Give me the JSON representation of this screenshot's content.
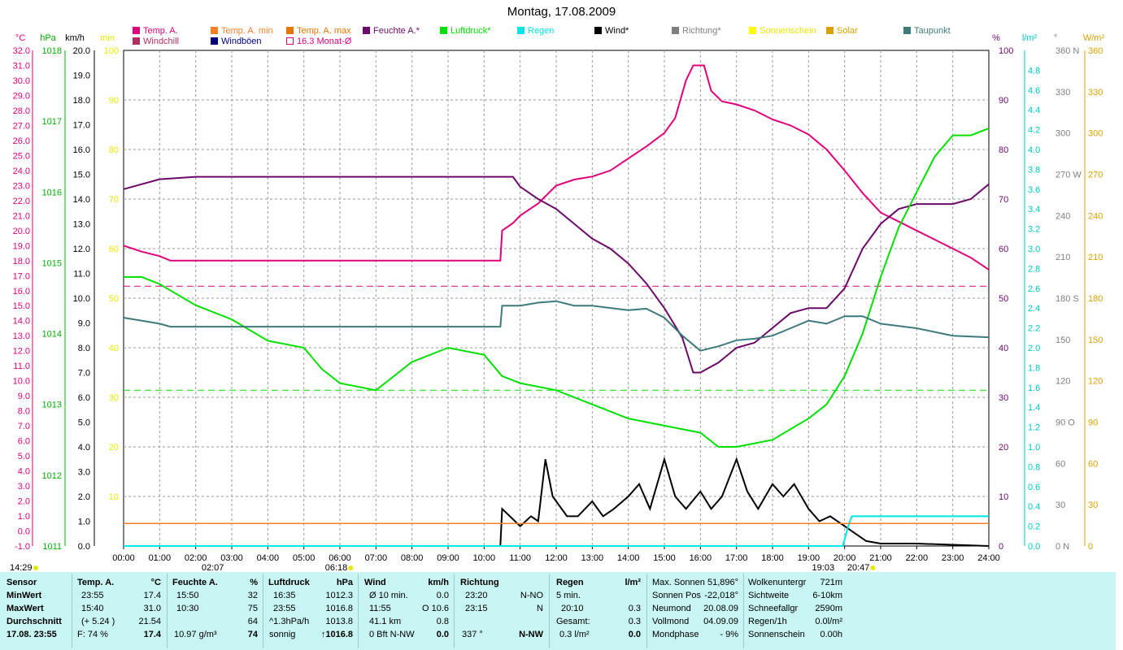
{
  "title": "Montag, 17.08.2009",
  "colors": {
    "temp": "#E0007A",
    "temp_min": "#FF7F27",
    "temp_max": "#E87400",
    "humidity": "#6B0A6B",
    "pressure": "#00E000",
    "rain": "#00E5E5",
    "wind": "#000000",
    "direction": "#7F7F7F",
    "sunshine": "#FFFF00",
    "solar": "#D8A000",
    "dewpoint": "#3F7A7A",
    "windchill": "#B03060",
    "gust": "#00007F",
    "monthavg": "#E0007A",
    "stats_bg": "#C8F4F4"
  },
  "legend": [
    {
      "label": "Temp. A.",
      "color": "#E0007A"
    },
    {
      "label": "Temp. A. min",
      "color": "#FF7F27"
    },
    {
      "label": "Temp. A. max",
      "color": "#E87400"
    },
    {
      "label": "Feuchte A.*",
      "color": "#6B0A6B"
    },
    {
      "label": "Luftdruck*",
      "color": "#00E000"
    },
    {
      "label": "Regen",
      "color": "#00E5E5"
    },
    {
      "label": "Wind*",
      "color": "#000000"
    },
    {
      "label": "Richtung*",
      "color": "#7F7F7F"
    },
    {
      "label": "Sonnenschein",
      "color": "#FFFF00"
    },
    {
      "label": "Solar",
      "color": "#D8A000"
    },
    {
      "label": "Taupunkt",
      "color": "#3F7A7A"
    },
    {
      "label": "Windchill",
      "color": "#B03060"
    },
    {
      "label": "Windböen",
      "color": "#00007F"
    },
    {
      "label": "16.3 Monat-Ø",
      "color": "#E0007A"
    }
  ],
  "chart_data": {
    "type": "line",
    "title": "Montag, 17.08.2009",
    "x_ticks": [
      "00:00",
      "01:00",
      "02:00",
      "03:00",
      "04:00",
      "05:00",
      "06:00",
      "07:00",
      "08:00",
      "09:00",
      "10:00",
      "11:00",
      "12:00",
      "13:00",
      "14:00",
      "15:00",
      "16:00",
      "17:00",
      "18:00",
      "19:00",
      "20:00",
      "21:00",
      "22:00",
      "23:00",
      "24:00"
    ],
    "axes": {
      "temp_c": {
        "unit": "°C",
        "range": [
          -1.0,
          32.0
        ],
        "ticks": [
          "32.0",
          "31.0",
          "30.0",
          "29.0",
          "28.0",
          "27.0",
          "26.0",
          "25.0",
          "24.0",
          "23.0",
          "22.0",
          "21.0",
          "20.0",
          "19.0",
          "18.0",
          "17.0",
          "16.0",
          "15.0",
          "14.0",
          "13.0",
          "12.0",
          "11.0",
          "10.0",
          "9.0",
          "8.0",
          "7.0",
          "6.0",
          "5.0",
          "4.0",
          "3.0",
          "2.0",
          "1.0",
          "0.0",
          "-1.0"
        ]
      },
      "pressure_hpa": {
        "unit": "hPa",
        "range": [
          1011,
          1018
        ],
        "ticks": [
          "1018",
          "1017",
          "1016",
          "1015",
          "1014",
          "1013",
          "1012",
          "1011"
        ]
      },
      "wind_kmh": {
        "unit": "km/h",
        "range": [
          0.0,
          20.0
        ],
        "ticks": [
          "20.0",
          "19.0",
          "18.0",
          "17.0",
          "16.0",
          "15.0",
          "14.0",
          "13.0",
          "12.0",
          "11.0",
          "10.0",
          "9.0",
          "8.0",
          "7.0",
          "6.0",
          "5.0",
          "4.0",
          "3.0",
          "2.0",
          "1.0",
          "0.0"
        ]
      },
      "sun_min": {
        "unit": "min",
        "range": [
          0,
          100
        ],
        "ticks": [
          "100",
          "90",
          "80",
          "70",
          "60",
          "50",
          "40",
          "30",
          "20",
          "10"
        ]
      },
      "humidity_pct": {
        "unit": "%",
        "range": [
          0,
          100
        ],
        "ticks": [
          "100",
          "90",
          "80",
          "70",
          "60",
          "50",
          "40",
          "30",
          "20",
          "10",
          "0"
        ]
      },
      "rain_lm2": {
        "unit": "l/m²",
        "range": [
          0.0,
          5.0
        ],
        "ticks": [
          "4.8",
          "4.6",
          "4.4",
          "4.2",
          "4.0",
          "3.8",
          "3.6",
          "3.4",
          "3.2",
          "3.0",
          "2.8",
          "2.6",
          "2.4",
          "2.2",
          "2.0",
          "1.8",
          "1.6",
          "1.4",
          "1.2",
          "1.0",
          "0.8",
          "0.6",
          "0.4",
          "0.2",
          "0.0"
        ]
      },
      "direction_deg": {
        "unit": "°",
        "range": [
          0,
          360
        ],
        "ticks": [
          "360 N",
          "330",
          "300",
          "270 W",
          "240",
          "210",
          "180 S",
          "150",
          "120",
          "90 O",
          "60",
          "30",
          "0 N"
        ]
      },
      "solar_wm2": {
        "unit": "W/m²",
        "range": [
          0,
          360
        ],
        "ticks": [
          "360",
          "330",
          "300",
          "270",
          "240",
          "210",
          "180",
          "150",
          "120",
          "90",
          "60",
          "30",
          "0"
        ]
      }
    },
    "sun_markers": {
      "sunrise": "06:18",
      "sunset": "20:47",
      "twilight_start": "02:07",
      "twilight_end": "19:03",
      "now": "14:29"
    },
    "reference_lines": {
      "temp_month_avg_c": 16.3,
      "pressure_ref_hpa": 1013.2
    },
    "series": [
      {
        "name": "Temp. A.",
        "axis": "temp_c",
        "points": [
          [
            0,
            19.0
          ],
          [
            0.5,
            18.6
          ],
          [
            1,
            18.3
          ],
          [
            1.3,
            18.0
          ],
          [
            2,
            18.0
          ],
          [
            5,
            18.0
          ],
          [
            8,
            18.0
          ],
          [
            10.45,
            18.0
          ],
          [
            10.5,
            20.0
          ],
          [
            10.8,
            20.5
          ],
          [
            11,
            21.0
          ],
          [
            11.5,
            21.8
          ],
          [
            12,
            23.0
          ],
          [
            12.5,
            23.4
          ],
          [
            13,
            23.6
          ],
          [
            13.5,
            24.0
          ],
          [
            14,
            24.8
          ],
          [
            14.5,
            25.6
          ],
          [
            15,
            26.5
          ],
          [
            15.3,
            27.5
          ],
          [
            15.6,
            30.0
          ],
          [
            15.8,
            31.0
          ],
          [
            16.1,
            31.0
          ],
          [
            16.3,
            29.3
          ],
          [
            16.6,
            28.6
          ],
          [
            17,
            28.4
          ],
          [
            17.5,
            28.0
          ],
          [
            18,
            27.4
          ],
          [
            18.5,
            27.0
          ],
          [
            19,
            26.4
          ],
          [
            19.5,
            25.4
          ],
          [
            20,
            24.0
          ],
          [
            20.5,
            22.5
          ],
          [
            21,
            21.2
          ],
          [
            21.5,
            20.6
          ],
          [
            22,
            20.0
          ],
          [
            22.5,
            19.4
          ],
          [
            23,
            18.8
          ],
          [
            23.5,
            18.2
          ],
          [
            24,
            17.4
          ]
        ]
      },
      {
        "name": "Feuchte A.*",
        "axis": "humidity_pct",
        "points": [
          [
            0,
            72
          ],
          [
            1,
            74
          ],
          [
            2,
            74.5
          ],
          [
            6,
            74.5
          ],
          [
            10.5,
            74.5
          ],
          [
            10.8,
            74.5
          ],
          [
            11,
            72.5
          ],
          [
            11.5,
            70
          ],
          [
            12,
            68
          ],
          [
            12.5,
            65
          ],
          [
            13,
            62
          ],
          [
            13.5,
            60
          ],
          [
            14,
            57
          ],
          [
            14.5,
            53
          ],
          [
            15,
            48
          ],
          [
            15.5,
            42
          ],
          [
            15.8,
            35
          ],
          [
            16,
            35
          ],
          [
            16.5,
            37
          ],
          [
            17,
            40
          ],
          [
            17.5,
            41
          ],
          [
            18,
            44
          ],
          [
            18.5,
            47
          ],
          [
            19,
            48
          ],
          [
            19.5,
            48
          ],
          [
            20,
            52
          ],
          [
            20.5,
            60
          ],
          [
            21,
            65
          ],
          [
            21.5,
            68
          ],
          [
            22,
            69
          ],
          [
            23,
            69
          ],
          [
            23.5,
            70
          ],
          [
            24,
            73
          ]
        ]
      },
      {
        "name": "Luftdruck*",
        "axis": "pressure_hpa",
        "points": [
          [
            0,
            1014.8
          ],
          [
            0.5,
            1014.8
          ],
          [
            1,
            1014.7
          ],
          [
            2,
            1014.4
          ],
          [
            3,
            1014.2
          ],
          [
            4,
            1013.9
          ],
          [
            5,
            1013.8
          ],
          [
            5.5,
            1013.5
          ],
          [
            6,
            1013.3
          ],
          [
            7,
            1013.2
          ],
          [
            7.5,
            1013.4
          ],
          [
            8,
            1013.6
          ],
          [
            9,
            1013.8
          ],
          [
            10,
            1013.7
          ],
          [
            10.5,
            1013.4
          ],
          [
            11,
            1013.3
          ],
          [
            12,
            1013.2
          ],
          [
            13,
            1013.0
          ],
          [
            14,
            1012.8
          ],
          [
            15,
            1012.7
          ],
          [
            16,
            1012.6
          ],
          [
            16.5,
            1012.4
          ],
          [
            17,
            1012.4
          ],
          [
            18,
            1012.5
          ],
          [
            19,
            1012.8
          ],
          [
            19.5,
            1013.0
          ],
          [
            20,
            1013.4
          ],
          [
            20.5,
            1014.0
          ],
          [
            21,
            1014.8
          ],
          [
            21.5,
            1015.5
          ],
          [
            22,
            1016.0
          ],
          [
            22.5,
            1016.5
          ],
          [
            23,
            1016.8
          ],
          [
            23.5,
            1016.8
          ],
          [
            24,
            1016.9
          ]
        ]
      },
      {
        "name": "Taupunkt",
        "axis": "temp_c",
        "points": [
          [
            0,
            14.2
          ],
          [
            1,
            13.8
          ],
          [
            1.3,
            13.6
          ],
          [
            2,
            13.6
          ],
          [
            6,
            13.6
          ],
          [
            10.45,
            13.6
          ],
          [
            10.5,
            15.0
          ],
          [
            11,
            15.0
          ],
          [
            11.5,
            15.2
          ],
          [
            12,
            15.3
          ],
          [
            12.5,
            15.0
          ],
          [
            13,
            15.0
          ],
          [
            14,
            14.7
          ],
          [
            14.5,
            14.8
          ],
          [
            15,
            14.2
          ],
          [
            15.5,
            13.0
          ],
          [
            16,
            12.0
          ],
          [
            16.5,
            12.3
          ],
          [
            17,
            12.7
          ],
          [
            17.5,
            12.8
          ],
          [
            18,
            13.0
          ],
          [
            18.5,
            13.5
          ],
          [
            19,
            14.0
          ],
          [
            19.5,
            13.8
          ],
          [
            20,
            14.3
          ],
          [
            20.5,
            14.3
          ],
          [
            21,
            13.8
          ],
          [
            22,
            13.5
          ],
          [
            23,
            13.0
          ],
          [
            24,
            12.9
          ]
        ]
      },
      {
        "name": "Wind*",
        "axis": "wind_kmh",
        "points": [
          [
            0,
            0
          ],
          [
            10.45,
            0
          ],
          [
            10.5,
            1.5
          ],
          [
            11,
            0.8
          ],
          [
            11.3,
            1.2
          ],
          [
            11.5,
            1.0
          ],
          [
            11.7,
            3.5
          ],
          [
            11.9,
            2.0
          ],
          [
            12,
            1.8
          ],
          [
            12.3,
            1.2
          ],
          [
            12.6,
            1.2
          ],
          [
            13,
            1.8
          ],
          [
            13.3,
            1.2
          ],
          [
            13.6,
            1.5
          ],
          [
            14,
            2.0
          ],
          [
            14.3,
            2.5
          ],
          [
            14.6,
            1.5
          ],
          [
            15,
            3.5
          ],
          [
            15.3,
            2.0
          ],
          [
            15.6,
            1.5
          ],
          [
            16,
            2.2
          ],
          [
            16.3,
            1.5
          ],
          [
            16.6,
            2.0
          ],
          [
            17,
            3.5
          ],
          [
            17.3,
            2.2
          ],
          [
            17.6,
            1.5
          ],
          [
            18,
            2.5
          ],
          [
            18.3,
            2.0
          ],
          [
            18.6,
            2.5
          ],
          [
            19,
            1.5
          ],
          [
            19.3,
            1.0
          ],
          [
            19.6,
            1.2
          ],
          [
            20,
            0.8
          ],
          [
            20.3,
            0.5
          ],
          [
            20.6,
            0.2
          ],
          [
            21,
            0.1
          ],
          [
            22,
            0.1
          ],
          [
            23,
            0.05
          ],
          [
            24,
            0
          ]
        ]
      },
      {
        "name": "Regen",
        "axis": "rain_lm2",
        "points": [
          [
            0,
            0
          ],
          [
            19.95,
            0
          ],
          [
            20.1,
            0.2
          ],
          [
            20.2,
            0.3
          ],
          [
            24,
            0.3
          ]
        ]
      },
      {
        "name": "Temp. A. min",
        "axis": "temp_c",
        "points": [
          [
            0,
            0.5
          ],
          [
            24,
            0.5
          ]
        ]
      }
    ]
  },
  "stats": {
    "date_label": "17.08. 23:55",
    "rows": [
      "Sensor",
      "MinWert",
      "MaxWert",
      "Durchschnitt",
      "17.08. 23:55"
    ],
    "temp": {
      "header": "Temp. A.",
      "unit": "°C",
      "cells": [
        [
          "23:55",
          "17.4"
        ],
        [
          "15:40",
          "31.0"
        ],
        [
          "(+ 5.24 )",
          "21.54"
        ],
        [
          "F: 74 %",
          "17.4"
        ]
      ]
    },
    "humidity": {
      "header": "Feuchte A.",
      "unit": "%",
      "cells": [
        [
          "15:50",
          "32"
        ],
        [
          "10:30",
          "75"
        ],
        [
          "",
          "64"
        ],
        [
          "10.97 g/m³",
          "74"
        ]
      ]
    },
    "pressure": {
      "header": "Luftdruck",
      "unit": "hPa",
      "cells": [
        [
          "16:35",
          "1012.3"
        ],
        [
          "23:55",
          "1016.8"
        ],
        [
          "^1.3hPa/h",
          "1013.8"
        ],
        [
          "sonnig",
          "↑1016.8"
        ]
      ]
    },
    "wind": {
      "header": "Wind",
      "unit": "km/h",
      "cells": [
        [
          "Ø 10 min.",
          "0.0"
        ],
        [
          "11:55",
          "O 10.6"
        ],
        [
          "41.1 km",
          "0.8"
        ],
        [
          "0 Bft N-NW",
          "0.0"
        ]
      ]
    },
    "direction": {
      "header": "Richtung",
      "cells": [
        [
          "23:20",
          "N-NO"
        ],
        [
          "23:15",
          "N"
        ],
        [
          "",
          ""
        ],
        [
          "337 °",
          "N-NW"
        ]
      ]
    },
    "rain": {
      "header": "Regen",
      "unit": "l/m²",
      "cells": [
        [
          "5 min.",
          ""
        ],
        [
          "20:10",
          "0.3"
        ],
        [
          "Gesamt:",
          "0.3"
        ],
        [
          "0.3 l/m²",
          "0.0"
        ]
      ]
    },
    "sun": [
      [
        "Max. Sonnen",
        "51,896°"
      ],
      [
        "Sonnen Pos",
        "-22,018°"
      ],
      [
        "Neumond",
        "20.08.09"
      ],
      [
        "Vollmond",
        "04.09.09"
      ],
      [
        "Mondphase",
        "- 9%"
      ]
    ],
    "cloud": [
      [
        "Wolkenuntergr",
        "721m"
      ],
      [
        "Sichtweite",
        "6-10km"
      ],
      [
        "Schneefallgr",
        "2590m"
      ],
      [
        "Regen/1h",
        "0.0l/m²"
      ],
      [
        "Sonnenschein",
        "0.00h"
      ]
    ]
  }
}
